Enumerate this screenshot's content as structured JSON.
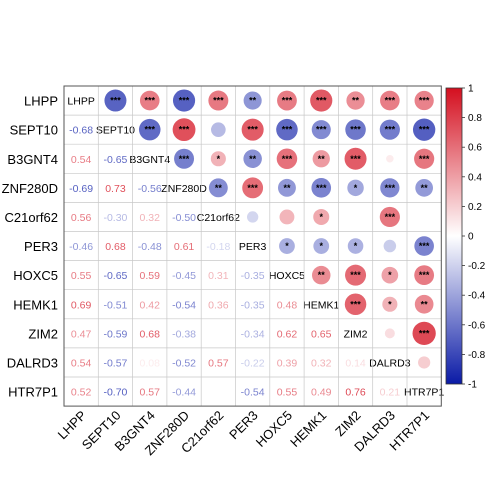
{
  "chart_data": {
    "type": "heatmap",
    "subtype": "mixed correlation matrix (upper: circles, lower: numbers)",
    "variables": [
      "LHPP",
      "SEPT10",
      "B3GNT4",
      "ZNF280D",
      "C21orf62",
      "PER3",
      "HOXC5",
      "HEMK1",
      "ZIM2",
      "DALRD3",
      "HTR7P1"
    ],
    "correlations": [
      [
        1.0,
        -0.68,
        0.54,
        -0.69,
        0.56,
        -0.46,
        0.55,
        0.69,
        0.47,
        0.54,
        0.52
      ],
      [
        -0.68,
        1.0,
        -0.65,
        0.73,
        -0.3,
        0.68,
        -0.65,
        -0.51,
        -0.59,
        -0.57,
        -0.7
      ],
      [
        0.54,
        -0.65,
        1.0,
        -0.56,
        0.32,
        -0.48,
        0.59,
        0.42,
        0.68,
        0.08,
        0.57
      ],
      [
        -0.69,
        0.73,
        -0.56,
        1.0,
        -0.5,
        0.61,
        -0.45,
        -0.54,
        -0.38,
        -0.52,
        -0.44
      ],
      [
        0.56,
        -0.3,
        0.32,
        -0.5,
        1.0,
        -0.18,
        0.31,
        0.36,
        0.0,
        0.57,
        0.0
      ],
      [
        -0.46,
        0.68,
        -0.48,
        0.61,
        -0.18,
        1.0,
        -0.35,
        -0.35,
        -0.34,
        -0.22,
        -0.54
      ],
      [
        0.55,
        -0.65,
        0.59,
        -0.45,
        0.31,
        -0.35,
        1.0,
        0.48,
        0.62,
        0.39,
        0.55
      ],
      [
        0.69,
        -0.51,
        0.42,
        -0.54,
        0.36,
        -0.35,
        0.48,
        1.0,
        0.65,
        0.32,
        0.49
      ],
      [
        0.47,
        -0.59,
        0.68,
        -0.38,
        0.0,
        -0.34,
        0.62,
        0.65,
        1.0,
        0.14,
        0.76
      ],
      [
        0.54,
        -0.57,
        0.08,
        -0.52,
        0.57,
        -0.22,
        0.39,
        0.32,
        0.14,
        1.0,
        0.21
      ],
      [
        0.52,
        -0.7,
        0.57,
        -0.44,
        0.0,
        -0.54,
        0.55,
        0.49,
        0.76,
        0.21,
        1.0
      ]
    ],
    "lower_blank": [
      [
        10,
        4
      ],
      [
        8,
        4
      ]
    ],
    "significance": [
      [
        "",
        "***",
        "***",
        "***",
        "***",
        "**",
        "***",
        "***",
        "**",
        "***",
        "***"
      ],
      [
        "",
        "",
        "***",
        "***",
        "",
        "***",
        "***",
        "***",
        "***",
        "***",
        "***"
      ],
      [
        "",
        "",
        "",
        "***",
        "*",
        "**",
        "***",
        "**",
        "***",
        "",
        "***"
      ],
      [
        "",
        "",
        "",
        "",
        "**",
        "***",
        "**",
        "***",
        "*",
        "***",
        "**"
      ],
      [
        "",
        "",
        "",
        "",
        "",
        "",
        "",
        "*",
        "",
        "***",
        ""
      ],
      [
        "",
        "",
        "",
        "",
        "",
        "",
        "*",
        "*",
        "*",
        "",
        "***"
      ],
      [
        "",
        "",
        "",
        "",
        "",
        "",
        "",
        "**",
        "***",
        "*",
        "***"
      ],
      [
        "",
        "",
        "",
        "",
        "",
        "",
        "",
        "",
        "***",
        "*",
        "**"
      ],
      [
        "",
        "",
        "",
        "",
        "",
        "",
        "",
        "",
        "",
        "",
        "***"
      ],
      [
        "",
        "",
        "",
        "",
        "",
        "",
        "",
        "",
        "",
        "",
        ""
      ],
      [
        "",
        "",
        "",
        "",
        "",
        "",
        "",
        "",
        "",
        "",
        ""
      ]
    ],
    "colorbar": {
      "min": -1,
      "max": 1,
      "ticks": [
        "1",
        "0.8",
        "0.6",
        "0.4",
        "0.2",
        "0",
        "-0.2",
        "-0.4",
        "-0.6",
        "-0.8",
        "-1"
      ],
      "colors": {
        "negative": "#0a1aa6",
        "neutral": "#ffffff",
        "positive": "#d40f1f"
      }
    },
    "grid": true,
    "legend_position": "right"
  }
}
